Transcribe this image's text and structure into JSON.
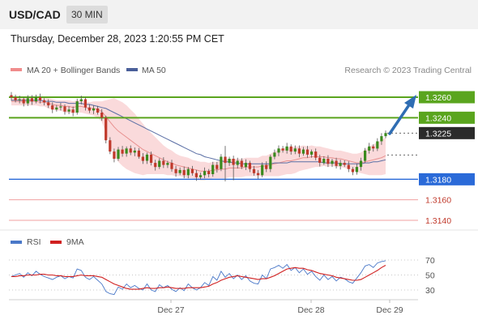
{
  "header": {
    "symbol": "USD/CAD",
    "timeframe": "30 MIN"
  },
  "datetime": "Thursday, December 28, 2023 1:20:55 PM CET",
  "legend": {
    "bb": "MA 20 + Bollinger Bands",
    "ma50": "MA 50",
    "credit": "Research © 2023 Trading Central",
    "rsi": "RSI",
    "ma9": "9MA"
  },
  "colors": {
    "up": "#3a8a1e",
    "down": "#c0392b",
    "bb_fill": "#fadadb",
    "ma20": "#e8908f",
    "ma50": "#5b6fa5",
    "support": "#2a6ad8",
    "resistance": "#5aa51e",
    "rsi": "#4a78c8",
    "ma9": "#d02020",
    "arrow": "#2f6db3"
  },
  "chart_data": [
    {
      "type": "candlestick",
      "x_ticks": [
        "Dec 27",
        "Dec 28",
        "Dec 29"
      ],
      "last_price": 1.3225,
      "levels": [
        {
          "label": "1.3260",
          "value": 1.326,
          "kind": "resistance"
        },
        {
          "label": "1.3240",
          "value": 1.324,
          "kind": "resistance"
        },
        {
          "label": "1.3180",
          "value": 1.318,
          "kind": "support"
        },
        {
          "label": "1.3160",
          "value": 1.316,
          "kind": "target"
        },
        {
          "label": "1.3140",
          "value": 1.314,
          "kind": "target"
        }
      ],
      "last_label": "1.3225",
      "close": [
        1.326,
        1.3257,
        1.3258,
        1.3254,
        1.3259,
        1.3256,
        1.326,
        1.3257,
        1.3255,
        1.3252,
        1.3248,
        1.325,
        1.3251,
        1.3246,
        1.3248,
        1.3245,
        1.3256,
        1.3258,
        1.325,
        1.3247,
        1.3249,
        1.3245,
        1.324,
        1.3218,
        1.3207,
        1.32,
        1.3209,
        1.3205,
        1.321,
        1.3206,
        1.3208,
        1.3202,
        1.3198,
        1.3204,
        1.3196,
        1.3192,
        1.3198,
        1.3194,
        1.3196,
        1.319,
        1.3186,
        1.3189,
        1.3184,
        1.319,
        1.3186,
        1.3182,
        1.3184,
        1.3188,
        1.3185,
        1.3194,
        1.319,
        1.3202,
        1.3196,
        1.32,
        1.3194,
        1.3198,
        1.3192,
        1.3196,
        1.319,
        1.3186,
        1.3184,
        1.3194,
        1.319,
        1.3202,
        1.3206,
        1.321,
        1.3208,
        1.3212,
        1.3207,
        1.321,
        1.3205,
        1.3209,
        1.3204,
        1.3207,
        1.3201,
        1.3196,
        1.32,
        1.3195,
        1.3198,
        1.3193,
        1.3196,
        1.3194,
        1.319,
        1.3187,
        1.3192,
        1.3198,
        1.3208,
        1.3212,
        1.321,
        1.3217,
        1.3222,
        1.3225
      ],
      "ma20": [
        1.3256,
        1.3256,
        1.3256,
        1.3256,
        1.3256,
        1.3256,
        1.3256,
        1.3255,
        1.3255,
        1.3254,
        1.3253,
        1.3252,
        1.3252,
        1.3251,
        1.3251,
        1.325,
        1.3251,
        1.3251,
        1.325,
        1.3249,
        1.3249,
        1.3248,
        1.3246,
        1.3241,
        1.3236,
        1.3231,
        1.3227,
        1.3224,
        1.3221,
        1.3218,
        1.3215,
        1.3212,
        1.3209,
        1.3207,
        1.3205,
        1.3203,
        1.3201,
        1.3199,
        1.3197,
        1.3196,
        1.3194,
        1.3193,
        1.3192,
        1.3191,
        1.319,
        1.3189,
        1.3188,
        1.3188,
        1.3188,
        1.3189,
        1.3189,
        1.319,
        1.319,
        1.3191,
        1.3191,
        1.3191,
        1.3191,
        1.3192,
        1.3192,
        1.3192,
        1.3192,
        1.3193,
        1.3193,
        1.3194,
        1.3195,
        1.3196,
        1.3197,
        1.3198,
        1.3198,
        1.3199,
        1.32,
        1.3201,
        1.3201,
        1.3202,
        1.3202,
        1.3202,
        1.3202,
        1.3201,
        1.3201,
        1.32,
        1.32,
        1.3199,
        1.3198,
        1.3197,
        1.3196,
        1.3196,
        1.3197,
        1.3198,
        1.3199,
        1.32,
        1.3201,
        1.3203
      ],
      "ma50": [
        1.3257,
        1.3257,
        1.3257,
        1.3257,
        1.3257,
        1.3257,
        1.3257,
        1.3257,
        1.3256,
        1.3256,
        1.3256,
        1.3255,
        1.3255,
        1.3255,
        1.3254,
        1.3254,
        1.3254,
        1.3254,
        1.3253,
        1.3253,
        1.3252,
        1.3251,
        1.325,
        1.3249,
        1.3247,
        1.3245,
        1.3243,
        1.3241,
        1.3239,
        1.3237,
        1.3235,
        1.3233,
        1.3231,
        1.3229,
        1.3227,
        1.3225,
        1.3223,
        1.3221,
        1.3219,
        1.3217,
        1.3215,
        1.3213,
        1.3211,
        1.3209,
        1.3207,
        1.3205,
        1.3204,
        1.3202,
        1.3201,
        1.32,
        1.3199,
        1.3198,
        1.3197,
        1.3197,
        1.3196,
        1.3196,
        1.3195,
        1.3195,
        1.3195,
        1.3195,
        1.3195,
        1.3195,
        1.3195,
        1.3195,
        1.3196,
        1.3196,
        1.3196,
        1.3196,
        1.3197,
        1.3197,
        1.3197,
        1.3197,
        1.3197,
        1.3197,
        1.3197,
        1.3197,
        1.3196,
        1.3196,
        1.3196,
        1.3196,
        1.3195,
        1.3195,
        1.3195,
        1.3195,
        1.3195,
        1.3195,
        1.3196,
        1.3196,
        1.3197,
        1.3197,
        1.3198,
        1.3199
      ],
      "bb_width": [
        0.0004,
        0.0004,
        0.0004,
        0.0004,
        0.0004,
        0.0004,
        0.0004,
        0.0004,
        0.0004,
        0.0005,
        0.0005,
        0.0005,
        0.0005,
        0.0006,
        0.0006,
        0.0006,
        0.0006,
        0.0006,
        0.0006,
        0.0006,
        0.0007,
        0.0008,
        0.001,
        0.0016,
        0.0022,
        0.0028,
        0.003,
        0.0031,
        0.0031,
        0.003,
        0.0029,
        0.0027,
        0.0025,
        0.0022,
        0.002,
        0.0018,
        0.0016,
        0.0014,
        0.0013,
        0.0012,
        0.0011,
        0.001,
        0.001,
        0.001,
        0.0009,
        0.0009,
        0.0009,
        0.0009,
        0.0008,
        0.0008,
        0.0008,
        0.0009,
        0.0009,
        0.0009,
        0.0009,
        0.0009,
        0.0009,
        0.0009,
        0.0009,
        0.0009,
        0.0009,
        0.001,
        0.001,
        0.0011,
        0.0012,
        0.0013,
        0.0013,
        0.0013,
        0.0013,
        0.0013,
        0.0012,
        0.0012,
        0.0011,
        0.0011,
        0.001,
        0.001,
        0.0009,
        0.0009,
        0.0008,
        0.0008,
        0.0008,
        0.0008,
        0.0008,
        0.0008,
        0.0009,
        0.001,
        0.0012,
        0.0014,
        0.0015,
        0.0016,
        0.0017,
        0.0018
      ]
    },
    {
      "type": "line",
      "name": "RSI",
      "y_ticks": [
        30,
        50,
        70
      ],
      "ylim": [
        20,
        80
      ],
      "rsi": [
        48,
        50,
        52,
        47,
        53,
        49,
        55,
        51,
        48,
        46,
        44,
        47,
        49,
        45,
        48,
        46,
        58,
        56,
        47,
        44,
        48,
        43,
        38,
        28,
        25,
        24,
        34,
        31,
        38,
        33,
        36,
        32,
        30,
        38,
        30,
        28,
        37,
        33,
        36,
        31,
        28,
        33,
        29,
        38,
        33,
        30,
        33,
        40,
        36,
        48,
        43,
        55,
        47,
        52,
        45,
        50,
        44,
        49,
        42,
        39,
        38,
        50,
        45,
        58,
        60,
        63,
        59,
        64,
        56,
        60,
        53,
        58,
        51,
        55,
        48,
        43,
        50,
        44,
        48,
        42,
        47,
        45,
        41,
        39,
        46,
        53,
        62,
        64,
        60,
        66,
        68,
        69
      ],
      "ma9": [
        48,
        48,
        49,
        49,
        50,
        50,
        50,
        51,
        51,
        50,
        50,
        49,
        49,
        48,
        48,
        48,
        49,
        50,
        49,
        49,
        49,
        48,
        47,
        44,
        41,
        38,
        36,
        34,
        32,
        31,
        31,
        31,
        32,
        33,
        32,
        32,
        33,
        33,
        34,
        33,
        32,
        32,
        32,
        33,
        33,
        33,
        33,
        34,
        35,
        38,
        40,
        43,
        45,
        47,
        48,
        49,
        48,
        47,
        46,
        45,
        44,
        45,
        45,
        47,
        49,
        52,
        55,
        58,
        59,
        60,
        59,
        59,
        57,
        56,
        54,
        52,
        51,
        50,
        49,
        47,
        46,
        45,
        44,
        43,
        43,
        44,
        47,
        50,
        53,
        56,
        60,
        63
      ]
    }
  ]
}
